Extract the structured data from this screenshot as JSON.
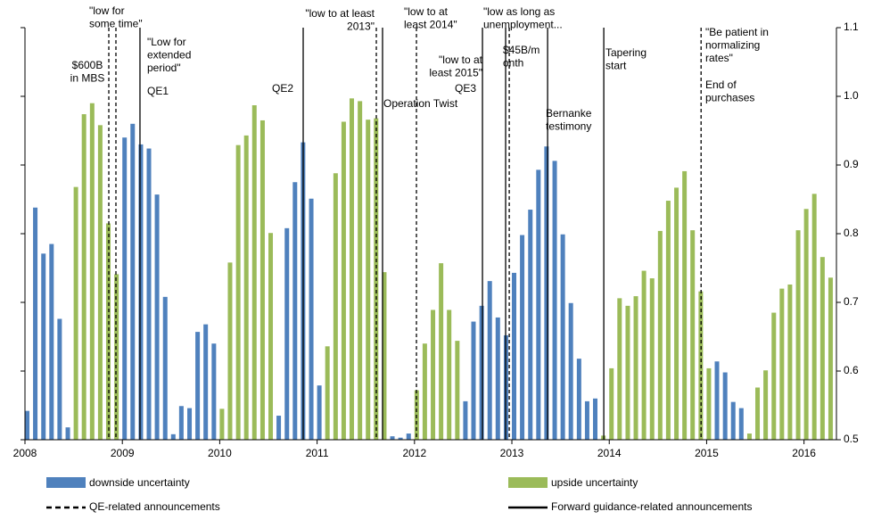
{
  "chart_data": {
    "type": "bar",
    "x": [
      2008,
      2008.083,
      2008.167,
      2008.25,
      2008.333,
      2008.417,
      2008.5,
      2008.583,
      2008.667,
      2008.75,
      2008.833,
      2008.917,
      2009,
      2009.083,
      2009.167,
      2009.25,
      2009.333,
      2009.417,
      2009.5,
      2009.583,
      2009.667,
      2009.75,
      2009.833,
      2009.917,
      2010,
      2010.083,
      2010.167,
      2010.25,
      2010.333,
      2010.417,
      2010.5,
      2010.583,
      2010.667,
      2010.75,
      2010.833,
      2010.917,
      2011,
      2011.083,
      2011.167,
      2011.25,
      2011.333,
      2011.417,
      2011.5,
      2011.583,
      2011.667,
      2011.75,
      2011.833,
      2011.917,
      2012,
      2012.083,
      2012.167,
      2012.25,
      2012.333,
      2012.417,
      2012.5,
      2012.583,
      2012.667,
      2012.75,
      2012.833,
      2012.917,
      2013,
      2013.083,
      2013.167,
      2013.25,
      2013.333,
      2013.417,
      2013.5,
      2013.583,
      2013.667,
      2013.75,
      2013.833,
      2013.917,
      2014,
      2014.083,
      2014.167,
      2014.25,
      2014.333,
      2014.417,
      2014.5,
      2014.583,
      2014.667,
      2014.75,
      2014.833,
      2014.917,
      2015,
      2015.083,
      2015.167,
      2015.25,
      2015.333,
      2015.417,
      2015.5,
      2015.583,
      2015.667,
      2015.75,
      2015.833,
      2015.917,
      2016,
      2016.083,
      2016.167,
      2016.25
    ],
    "series": [
      {
        "name": "downside uncertainty",
        "color": "#4f81bd",
        "values": [
          0.542,
          0.838,
          0.771,
          0.785,
          0.676,
          0.518,
          null,
          null,
          null,
          null,
          null,
          null,
          0.94,
          0.96,
          0.93,
          0.924,
          0.857,
          0.708,
          0.508,
          0.549,
          0.546,
          0.657,
          0.668,
          0.64,
          null,
          null,
          null,
          null,
          null,
          null,
          null,
          0.535,
          0.808,
          0.875,
          0.933,
          0.851,
          0.579,
          null,
          null,
          null,
          null,
          null,
          null,
          null,
          null,
          0.505,
          0.503,
          0.509,
          null,
          null,
          null,
          null,
          null,
          null,
          0.556,
          0.672,
          0.695,
          0.731,
          0.678,
          0.652,
          0.743,
          0.798,
          0.835,
          0.893,
          0.927,
          0.906,
          0.799,
          0.699,
          0.618,
          0.556,
          0.56,
          null,
          null,
          null,
          null,
          null,
          null,
          null,
          null,
          null,
          null,
          null,
          null,
          null,
          null,
          0.614,
          0.598,
          0.555,
          0.546,
          null,
          null,
          null,
          null,
          null,
          null,
          null,
          null,
          null,
          null,
          null
        ]
      },
      {
        "name": "upside uncertainty",
        "color": "#9bbb59",
        "values": [
          null,
          null,
          null,
          null,
          null,
          null,
          0.868,
          0.974,
          0.99,
          0.958,
          0.815,
          0.741,
          null,
          null,
          null,
          null,
          null,
          null,
          null,
          null,
          null,
          null,
          null,
          null,
          0.545,
          0.758,
          0.929,
          0.943,
          0.987,
          0.965,
          0.801,
          null,
          null,
          null,
          null,
          null,
          null,
          0.636,
          0.888,
          0.963,
          0.997,
          0.993,
          0.966,
          0.968,
          0.744,
          null,
          null,
          null,
          0.572,
          0.64,
          0.689,
          0.757,
          0.689,
          0.644,
          null,
          null,
          null,
          null,
          null,
          null,
          null,
          null,
          null,
          null,
          null,
          null,
          null,
          null,
          null,
          null,
          null,
          0.506,
          0.604,
          0.706,
          0.695,
          0.709,
          0.746,
          0.735,
          0.804,
          0.848,
          0.867,
          0.891,
          0.805,
          0.716,
          0.604,
          null,
          null,
          null,
          null,
          0.509,
          0.576,
          0.601,
          0.685,
          0.72,
          0.726,
          0.805,
          0.836,
          0.858,
          0.766,
          0.736
        ]
      }
    ],
    "xlim": [
      2008,
      2016.333
    ],
    "xticks": [
      2008,
      2009,
      2010,
      2011,
      2012,
      2013,
      2014,
      2015,
      2016
    ],
    "ylim": [
      0.5,
      1.1
    ],
    "yticks": [
      0.5,
      0.6,
      0.7,
      0.8,
      0.9,
      {
        "value": 1,
        "label": "1.0"
      },
      1.1
    ],
    "y_axis_side": "right",
    "events": [
      {
        "x": 2008.861,
        "dashed": true
      },
      {
        "x": 2008.934,
        "dashed": true
      },
      {
        "x": 2009.181,
        "dashed": false
      },
      {
        "x": 2010.857,
        "dashed": false
      },
      {
        "x": 2011.608,
        "dashed": true
      },
      {
        "x": 2011.672,
        "dashed": false
      },
      {
        "x": 2012.02,
        "dashed": true
      },
      {
        "x": 2012.698,
        "dashed": false
      },
      {
        "x": 2012.936,
        "dashed": false
      },
      {
        "x": 2012.973,
        "dashed": true
      },
      {
        "x": 2013.367,
        "dashed": false
      },
      {
        "x": 2013.944,
        "dashed": false
      },
      {
        "x": 2014.943,
        "dashed": true
      }
    ],
    "annotations": [
      {
        "lines": [
          "$600B",
          "in MBS"
        ]
      },
      {
        "lines": [
          "\"low for",
          "some time\""
        ]
      },
      {
        "lines": [
          "\"Low for",
          "extended",
          "period\""
        ]
      },
      {
        "lines": [
          "QE1"
        ]
      },
      {
        "lines": [
          "QE2"
        ]
      },
      {
        "lines": [
          "\"low to at least",
          "2013\""
        ]
      },
      {
        "lines": [
          "\"low to at",
          "least 2014\""
        ]
      },
      {
        "lines": [
          "Operation Twist"
        ]
      },
      {
        "lines": [
          "\"low to at",
          "least 2015\""
        ]
      },
      {
        "lines": [
          "QE3"
        ]
      },
      {
        "lines": [
          "\"low as long as",
          "unemployment..."
        ]
      },
      {
        "lines": [
          "$45B/m",
          "onth"
        ]
      },
      {
        "lines": [
          "Bernanke",
          "testimony"
        ]
      },
      {
        "lines": [
          "Tapering",
          "start"
        ]
      },
      {
        "lines": [
          "\"Be patient in",
          "normalizing",
          "rates\""
        ]
      },
      {
        "lines": [
          "End of",
          "purchases"
        ]
      }
    ],
    "legend_lines": [
      {
        "name": "QE-related announcements",
        "dashed": true
      },
      {
        "name": "Forward guidance-related announcements",
        "dashed": false
      }
    ]
  }
}
